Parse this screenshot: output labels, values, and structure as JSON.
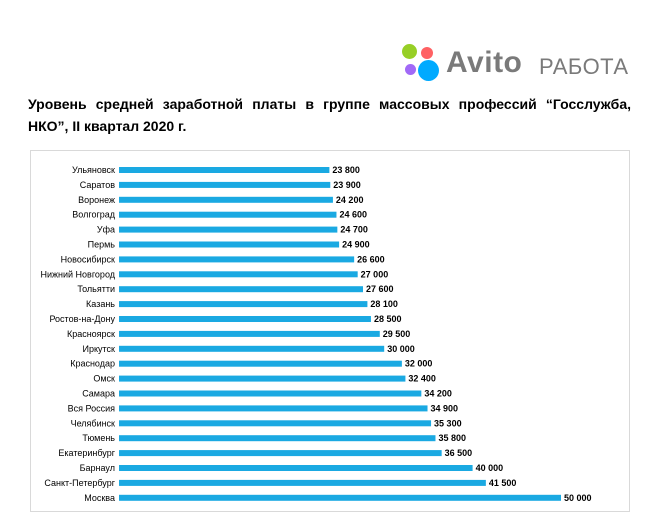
{
  "logo": {
    "brand": "Avito",
    "sub": "РАБОТА",
    "dot_colors": [
      "#97cf26",
      "#ff6163",
      "#a169f7",
      "#00aaff"
    ]
  },
  "chart_data": {
    "type": "bar",
    "orientation": "horizontal",
    "title": "Уровень средней заработной платы в группе массовых профессий “Госслужба, НКО”, II квартал 2020 г.",
    "xlabel": "",
    "ylabel": "",
    "xlim": [
      0,
      50000
    ],
    "grid": false,
    "bar_color": "#1aa9e2",
    "categories": [
      "Ульяновск",
      "Саратов",
      "Воронеж",
      "Волгоград",
      "Уфа",
      "Пермь",
      "Новосибирск",
      "Нижний Новгород",
      "Тольятти",
      "Казань",
      "Ростов-на-Дону",
      "Красноярск",
      "Иркутск",
      "Краснодар",
      "Омск",
      "Самара",
      "Вся Россия",
      "Челябинск",
      "Тюмень",
      "Екатеринбург",
      "Барнаул",
      "Санкт-Петербург",
      "Москва"
    ],
    "values": [
      23800,
      23900,
      24200,
      24600,
      24700,
      24900,
      26600,
      27000,
      27600,
      28100,
      28500,
      29500,
      30000,
      32000,
      32400,
      34200,
      34900,
      35300,
      35800,
      36500,
      40000,
      41500,
      50000
    ],
    "value_labels": [
      "23 800",
      "23 900",
      "24 200",
      "24 600",
      "24 700",
      "24 900",
      "26 600",
      "27 000",
      "27 600",
      "28 100",
      "28 500",
      "29 500",
      "30 000",
      "32 000",
      "32 400",
      "34 200",
      "34 900",
      "35 300",
      "35 800",
      "36 500",
      "40 000",
      "41 500",
      "50 000"
    ]
  }
}
